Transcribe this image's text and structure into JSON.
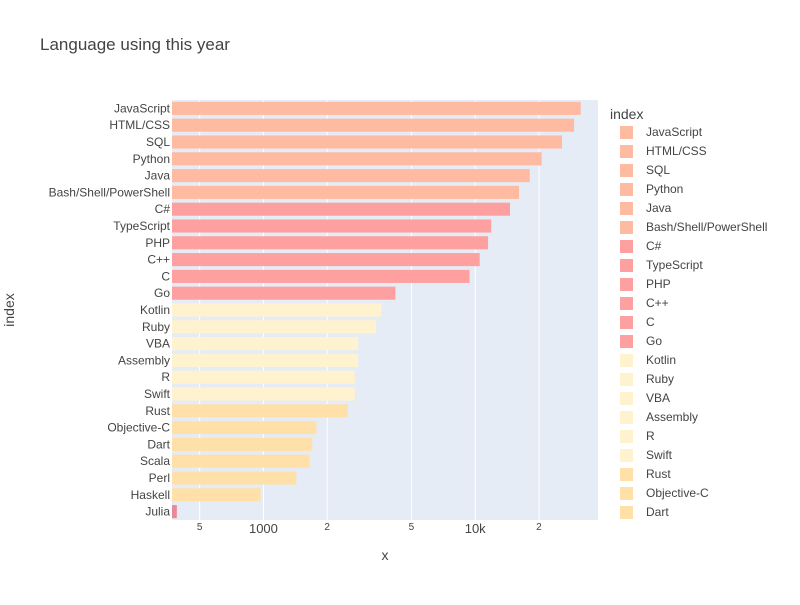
{
  "chart_data": {
    "type": "bar",
    "orientation": "horizontal",
    "title": "Language using this year",
    "xlabel": "x",
    "ylabel": "index",
    "x_scale": "log",
    "xlim": [
      370,
      38000
    ],
    "grid": true,
    "legend": {
      "title": "index",
      "placement": "right"
    },
    "x_tick_labels": [
      {
        "value": 500,
        "label": "5"
      },
      {
        "value": 1000,
        "label": "1000"
      },
      {
        "value": 2000,
        "label": "2"
      },
      {
        "value": 5000,
        "label": "5"
      },
      {
        "value": 10000,
        "label": "10k"
      },
      {
        "value": 20000,
        "label": "2"
      }
    ],
    "bars": [
      {
        "label": "JavaScript",
        "value": 31500,
        "color": "#FFBBA2"
      },
      {
        "label": "HTML/CSS",
        "value": 29300,
        "color": "#FFBBA2"
      },
      {
        "label": "SQL",
        "value": 25700,
        "color": "#FFBBA2"
      },
      {
        "label": "Python",
        "value": 20600,
        "color": "#FFBBA2"
      },
      {
        "label": "Java",
        "value": 18100,
        "color": "#FFBBA2"
      },
      {
        "label": "Bash/Shell/PowerShell",
        "value": 16100,
        "color": "#FFBBA2"
      },
      {
        "label": "C#",
        "value": 14600,
        "color": "#FFA0A0"
      },
      {
        "label": "TypeScript",
        "value": 11900,
        "color": "#FFA0A0"
      },
      {
        "label": "PHP",
        "value": 11500,
        "color": "#FFA0A0"
      },
      {
        "label": "C++",
        "value": 10500,
        "color": "#FFA0A0"
      },
      {
        "label": "C",
        "value": 9400,
        "color": "#FFA0A0"
      },
      {
        "label": "Go",
        "value": 4200,
        "color": "#FFA0A0"
      },
      {
        "label": "Kotlin",
        "value": 3600,
        "color": "#FFF2CF"
      },
      {
        "label": "Ruby",
        "value": 3400,
        "color": "#FFF2CF"
      },
      {
        "label": "VBA",
        "value": 2800,
        "color": "#FFF2CF"
      },
      {
        "label": "Assembly",
        "value": 2800,
        "color": "#FFF2CF"
      },
      {
        "label": "R",
        "value": 2700,
        "color": "#FFF2CF"
      },
      {
        "label": "Swift",
        "value": 2700,
        "color": "#FFF2CF"
      },
      {
        "label": "Rust",
        "value": 2500,
        "color": "#FFE0A8"
      },
      {
        "label": "Objective-C",
        "value": 1780,
        "color": "#FFE0A8"
      },
      {
        "label": "Dart",
        "value": 1700,
        "color": "#FFE0A8"
      },
      {
        "label": "Scala",
        "value": 1650,
        "color": "#FFE0A8"
      },
      {
        "label": "Perl",
        "value": 1430,
        "color": "#FFE0A8"
      },
      {
        "label": "Haskell",
        "value": 970,
        "color": "#FFE0A8"
      },
      {
        "label": "Julia",
        "value": 390,
        "color": "#E8899A"
      }
    ],
    "legend_entries": [
      {
        "label": "JavaScript",
        "color": "#FFBBA2"
      },
      {
        "label": "HTML/CSS",
        "color": "#FFBBA2"
      },
      {
        "label": "SQL",
        "color": "#FFBBA2"
      },
      {
        "label": "Python",
        "color": "#FFBBA2"
      },
      {
        "label": "Java",
        "color": "#FFBBA2"
      },
      {
        "label": "Bash/Shell/PowerShell",
        "color": "#FFBBA2"
      },
      {
        "label": "C#",
        "color": "#FFA0A0"
      },
      {
        "label": "TypeScript",
        "color": "#FFA0A0"
      },
      {
        "label": "PHP",
        "color": "#FFA0A0"
      },
      {
        "label": "C++",
        "color": "#FFA0A0"
      },
      {
        "label": "C",
        "color": "#FFA0A0"
      },
      {
        "label": "Go",
        "color": "#FFA0A0"
      },
      {
        "label": "Kotlin",
        "color": "#FFF2CF"
      },
      {
        "label": "Ruby",
        "color": "#FFF2CF"
      },
      {
        "label": "VBA",
        "color": "#FFF2CF"
      },
      {
        "label": "Assembly",
        "color": "#FFF2CF"
      },
      {
        "label": "R",
        "color": "#FFF2CF"
      },
      {
        "label": "Swift",
        "color": "#FFF2CF"
      },
      {
        "label": "Rust",
        "color": "#FFE0A8"
      },
      {
        "label": "Objective-C",
        "color": "#FFE0A8"
      },
      {
        "label": "Dart",
        "color": "#FFE0A8"
      }
    ],
    "colors": {
      "plot_background": "#E5ECF6",
      "grid": "#FFFFFF",
      "text": "#444444",
      "title": "#444444"
    }
  }
}
